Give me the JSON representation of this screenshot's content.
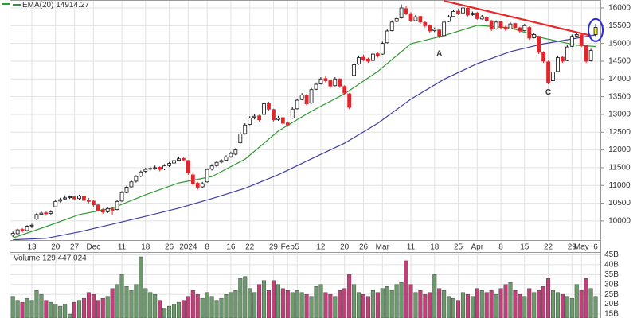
{
  "chart_data": {
    "type": "candlestick",
    "categories": [
      null,
      null,
      null,
      null,
      "13",
      null,
      null,
      null,
      null,
      "20",
      null,
      null,
      null,
      "27",
      null,
      null,
      null,
      "Dec",
      null,
      null,
      null,
      null,
      null,
      "11",
      null,
      null,
      null,
      null,
      "18",
      null,
      null,
      null,
      null,
      "26",
      null,
      null,
      null,
      "2024",
      null,
      null,
      null,
      "8",
      null,
      null,
      null,
      null,
      "16",
      null,
      null,
      null,
      "22",
      null,
      null,
      null,
      null,
      "29",
      null,
      null,
      "Feb",
      null,
      "5",
      null,
      null,
      null,
      null,
      "12",
      null,
      null,
      null,
      null,
      "20",
      null,
      null,
      null,
      "26",
      null,
      null,
      null,
      "Mar",
      null,
      null,
      null,
      null,
      null,
      "11",
      null,
      null,
      null,
      null,
      "18",
      null,
      null,
      null,
      null,
      "25",
      null,
      null,
      null,
      "Apr",
      null,
      null,
      null,
      null,
      "8",
      null,
      null,
      null,
      null,
      "15",
      null,
      null,
      null,
      null,
      "22",
      null,
      null,
      null,
      null,
      "29",
      null,
      "May",
      null,
      null,
      "6"
    ],
    "ohlc": [
      [
        9600,
        9700,
        9550,
        9650
      ],
      [
        9640,
        9780,
        9620,
        9750
      ],
      [
        9760,
        9800,
        9680,
        9720
      ],
      [
        9730,
        9880,
        9700,
        9850
      ],
      [
        9860,
        9920,
        9800,
        9880
      ],
      [
        10050,
        10220,
        10020,
        10180
      ],
      [
        10190,
        10280,
        10150,
        10220
      ],
      [
        10230,
        10270,
        10150,
        10200
      ],
      [
        10210,
        10300,
        10180,
        10250
      ],
      [
        10400,
        10580,
        10380,
        10550
      ],
      [
        10560,
        10650,
        10520,
        10600
      ],
      [
        10620,
        10720,
        10600,
        10650
      ],
      [
        10660,
        10720,
        10620,
        10680
      ],
      [
        10680,
        10700,
        10580,
        10620
      ],
      [
        10630,
        10740,
        10600,
        10700
      ],
      [
        10700,
        10720,
        10550,
        10580
      ],
      [
        10590,
        10650,
        10500,
        10550
      ],
      [
        10560,
        10600,
        10400,
        10450
      ],
      [
        10450,
        10480,
        10260,
        10300
      ],
      [
        10320,
        10360,
        10200,
        10250
      ],
      [
        10260,
        10400,
        10220,
        10350
      ],
      [
        10340,
        10380,
        10160,
        10300
      ],
      [
        10320,
        10580,
        10300,
        10550
      ],
      [
        10560,
        10840,
        10540,
        10800
      ],
      [
        10800,
        10990,
        10780,
        10950
      ],
      [
        10960,
        11150,
        10940,
        11100
      ],
      [
        11120,
        11290,
        11080,
        11250
      ],
      [
        11260,
        11420,
        11230,
        11380
      ],
      [
        11400,
        11500,
        11360,
        11450
      ],
      [
        11460,
        11530,
        11420,
        11480
      ],
      [
        11490,
        11560,
        11440,
        11500
      ],
      [
        11510,
        11540,
        11400,
        11450
      ],
      [
        11460,
        11600,
        11430,
        11550
      ],
      [
        11560,
        11660,
        11520,
        11620
      ],
      [
        11630,
        11740,
        11600,
        11700
      ],
      [
        11710,
        11790,
        11680,
        11750
      ],
      [
        11760,
        11800,
        11680,
        11720
      ],
      [
        11700,
        11720,
        11300,
        11350
      ],
      [
        11300,
        11340,
        11000,
        11050
      ],
      [
        11060,
        11100,
        10880,
        10950
      ],
      [
        10960,
        11100,
        10920,
        11050
      ],
      [
        11100,
        11480,
        11080,
        11450
      ],
      [
        11460,
        11600,
        11420,
        11550
      ],
      [
        11560,
        11700,
        11520,
        11650
      ],
      [
        11660,
        11740,
        11620,
        11700
      ],
      [
        11710,
        11850,
        11680,
        11800
      ],
      [
        11810,
        11950,
        11780,
        11900
      ],
      [
        11880,
        12050,
        11850,
        12000
      ],
      [
        12200,
        12500,
        12180,
        12450
      ],
      [
        12460,
        12750,
        12430,
        12700
      ],
      [
        12720,
        12950,
        12700,
        12900
      ],
      [
        12920,
        13000,
        12860,
        12950
      ],
      [
        12960,
        12990,
        12800,
        12850
      ],
      [
        13000,
        13350,
        12980,
        13300
      ],
      [
        13310,
        13360,
        13100,
        13150
      ],
      [
        13140,
        13160,
        12800,
        12850
      ],
      [
        12860,
        12960,
        12820,
        12900
      ],
      [
        12910,
        12940,
        12700,
        12750
      ],
      [
        12760,
        12800,
        12650,
        12700
      ],
      [
        12900,
        13200,
        12880,
        13150
      ],
      [
        13160,
        13450,
        13140,
        13400
      ],
      [
        13420,
        13600,
        13400,
        13550
      ],
      [
        13540,
        13580,
        13250,
        13300
      ],
      [
        13320,
        13750,
        13300,
        13700
      ],
      [
        13710,
        13900,
        13690,
        13850
      ],
      [
        13860,
        14050,
        13840,
        14000
      ],
      [
        14010,
        14080,
        13900,
        13950
      ],
      [
        13960,
        13980,
        13750,
        13800
      ],
      [
        13810,
        14050,
        13790,
        14000
      ],
      [
        14000,
        14020,
        13750,
        13800
      ],
      [
        13790,
        13820,
        13550,
        13600
      ],
      [
        13580,
        13600,
        13150,
        13200
      ],
      [
        14100,
        14450,
        14080,
        14400
      ],
      [
        14420,
        14650,
        14400,
        14600
      ],
      [
        14610,
        14680,
        14500,
        14550
      ],
      [
        14560,
        14600,
        14450,
        14500
      ],
      [
        14520,
        14750,
        14500,
        14700
      ],
      [
        14710,
        14760,
        14600,
        14650
      ],
      [
        14700,
        15050,
        14680,
        15000
      ],
      [
        15020,
        15400,
        15000,
        15350
      ],
      [
        15360,
        15650,
        15340,
        15600
      ],
      [
        15620,
        15750,
        15600,
        15700
      ],
      [
        15720,
        16100,
        15700,
        16000
      ],
      [
        15980,
        16050,
        15800,
        15850
      ],
      [
        15840,
        15880,
        15600,
        15650
      ],
      [
        15640,
        15800,
        15620,
        15750
      ],
      [
        15760,
        15780,
        15550,
        15600
      ],
      [
        15590,
        15620,
        15450,
        15500
      ],
      [
        15510,
        15540,
        15300,
        15350
      ],
      [
        15360,
        15450,
        15320,
        15400
      ],
      [
        15380,
        15420,
        15150,
        15200
      ],
      [
        15220,
        15650,
        15200,
        15600
      ],
      [
        15620,
        15800,
        15600,
        15750
      ],
      [
        15760,
        15950,
        15740,
        15900
      ],
      [
        15910,
        15980,
        15800,
        15850
      ],
      [
        15860,
        16050,
        15840,
        16000
      ],
      [
        15990,
        16010,
        15760,
        15800
      ],
      [
        15810,
        15900,
        15780,
        15850
      ],
      [
        15860,
        15890,
        15660,
        15700
      ],
      [
        15690,
        15800,
        15670,
        15750
      ],
      [
        15740,
        15770,
        15600,
        15650
      ],
      [
        15640,
        15660,
        15350,
        15400
      ],
      [
        15410,
        15650,
        15390,
        15600
      ],
      [
        15610,
        15640,
        15400,
        15450
      ],
      [
        15460,
        15500,
        15350,
        15400
      ],
      [
        15410,
        15600,
        15390,
        15550
      ],
      [
        15560,
        15580,
        15400,
        15450
      ],
      [
        15440,
        15470,
        15300,
        15350
      ],
      [
        15360,
        15550,
        15340,
        15500
      ],
      [
        15450,
        15480,
        15100,
        15150
      ],
      [
        15160,
        15300,
        15140,
        15250
      ],
      [
        15200,
        15220,
        14700,
        14750
      ],
      [
        14740,
        14780,
        14450,
        14500
      ],
      [
        14480,
        14520,
        13850,
        13900
      ],
      [
        13950,
        14250,
        13900,
        14200
      ],
      [
        14210,
        14650,
        14190,
        14600
      ],
      [
        14610,
        14640,
        14450,
        14500
      ],
      [
        14520,
        14950,
        14500,
        14900
      ],
      [
        14920,
        15250,
        14900,
        15200
      ],
      [
        15210,
        15300,
        15180,
        15250
      ],
      [
        15240,
        15260,
        14900,
        14950
      ],
      [
        14940,
        14960,
        14450,
        14500
      ],
      [
        14510,
        14850,
        14490,
        14800
      ],
      [
        15250,
        15550,
        15200,
        15450
      ]
    ],
    "up_color": "#ffffff",
    "down_color": "#e0262b",
    "highlight": {
      "index": 123,
      "color": "#f4ee3a"
    },
    "ylim": [
      9460,
      16224
    ],
    "yticks": [
      10000,
      10500,
      11000,
      11500,
      12000,
      12500,
      13000,
      13500,
      14000,
      14500,
      15000,
      15500,
      16000
    ],
    "grid": true,
    "lines": [
      {
        "name": "EMA(20)",
        "last": 14914.27,
        "color": "#2f9a33",
        "x": [
          0,
          7,
          14,
          21,
          28,
          35,
          42,
          49,
          56,
          63,
          70,
          77,
          84,
          91,
          98,
          105,
          112,
          119,
          123
        ],
        "values": [
          9520,
          9840,
          10180,
          10360,
          10740,
          11070,
          11250,
          11740,
          12530,
          13090,
          13580,
          14210,
          14990,
          15220,
          15510,
          15440,
          15150,
          14950,
          14914
        ]
      },
      {
        "color": "#3d3da6",
        "x": [
          0,
          7,
          14,
          21,
          28,
          35,
          42,
          49,
          56,
          63,
          70,
          77,
          84,
          91,
          98,
          105,
          112,
          119,
          123
        ],
        "values": [
          9470,
          9510,
          9690,
          9910,
          10130,
          10360,
          10630,
          10920,
          11300,
          11750,
          12190,
          12750,
          13430,
          13990,
          14430,
          14770,
          14990,
          15150,
          15240
        ]
      }
    ],
    "trendline": {
      "color": "#e8282b",
      "x": [
        91,
        122
      ],
      "values": [
        16200,
        15220
      ]
    },
    "annotations": [
      {
        "text": "A",
        "x": 90,
        "y": 14700
      },
      {
        "text": "C",
        "x": 113,
        "y": 13620
      }
    ],
    "volume": {
      "title": "Volume 129,447,024",
      "up_color": "#6c9a6c",
      "down_color": "#c2407a",
      "values": [
        24,
        22,
        21,
        23,
        22,
        27,
        25,
        22,
        21,
        20,
        19,
        20,
        15,
        21,
        22,
        23,
        26,
        25,
        22,
        23,
        24,
        28,
        30,
        35,
        29,
        27,
        30,
        44,
        28,
        26,
        25,
        22,
        18,
        19,
        20,
        21,
        22,
        24,
        27,
        25,
        23,
        26,
        24,
        22,
        23,
        25,
        26,
        27,
        33,
        34,
        28,
        26,
        30,
        32,
        27,
        32,
        30,
        28,
        27,
        26,
        27,
        26,
        25,
        24,
        29,
        30,
        26,
        25,
        24,
        27,
        28,
        35,
        30,
        26,
        25,
        24,
        27,
        26,
        28,
        29,
        27,
        30,
        31,
        42,
        30,
        26,
        27,
        25,
        26,
        35,
        28,
        27,
        24,
        23,
        22,
        26,
        25,
        24,
        28,
        27,
        26,
        27,
        25,
        28,
        30,
        31,
        27,
        25,
        24,
        28,
        26,
        27,
        29,
        33,
        27,
        26,
        25,
        24,
        23,
        30,
        27,
        33,
        28,
        24
      ],
      "ylim": [
        13,
        46
      ],
      "yticks": [
        {
          "value": 15,
          "label": "15B"
        },
        {
          "value": 20,
          "label": "20B"
        },
        {
          "value": 25,
          "label": "25B"
        },
        {
          "value": 30,
          "label": "30B"
        },
        {
          "value": 35,
          "label": "35B"
        },
        {
          "value": 40,
          "label": "40B"
        },
        {
          "value": 45,
          "label": "45B"
        }
      ]
    }
  }
}
